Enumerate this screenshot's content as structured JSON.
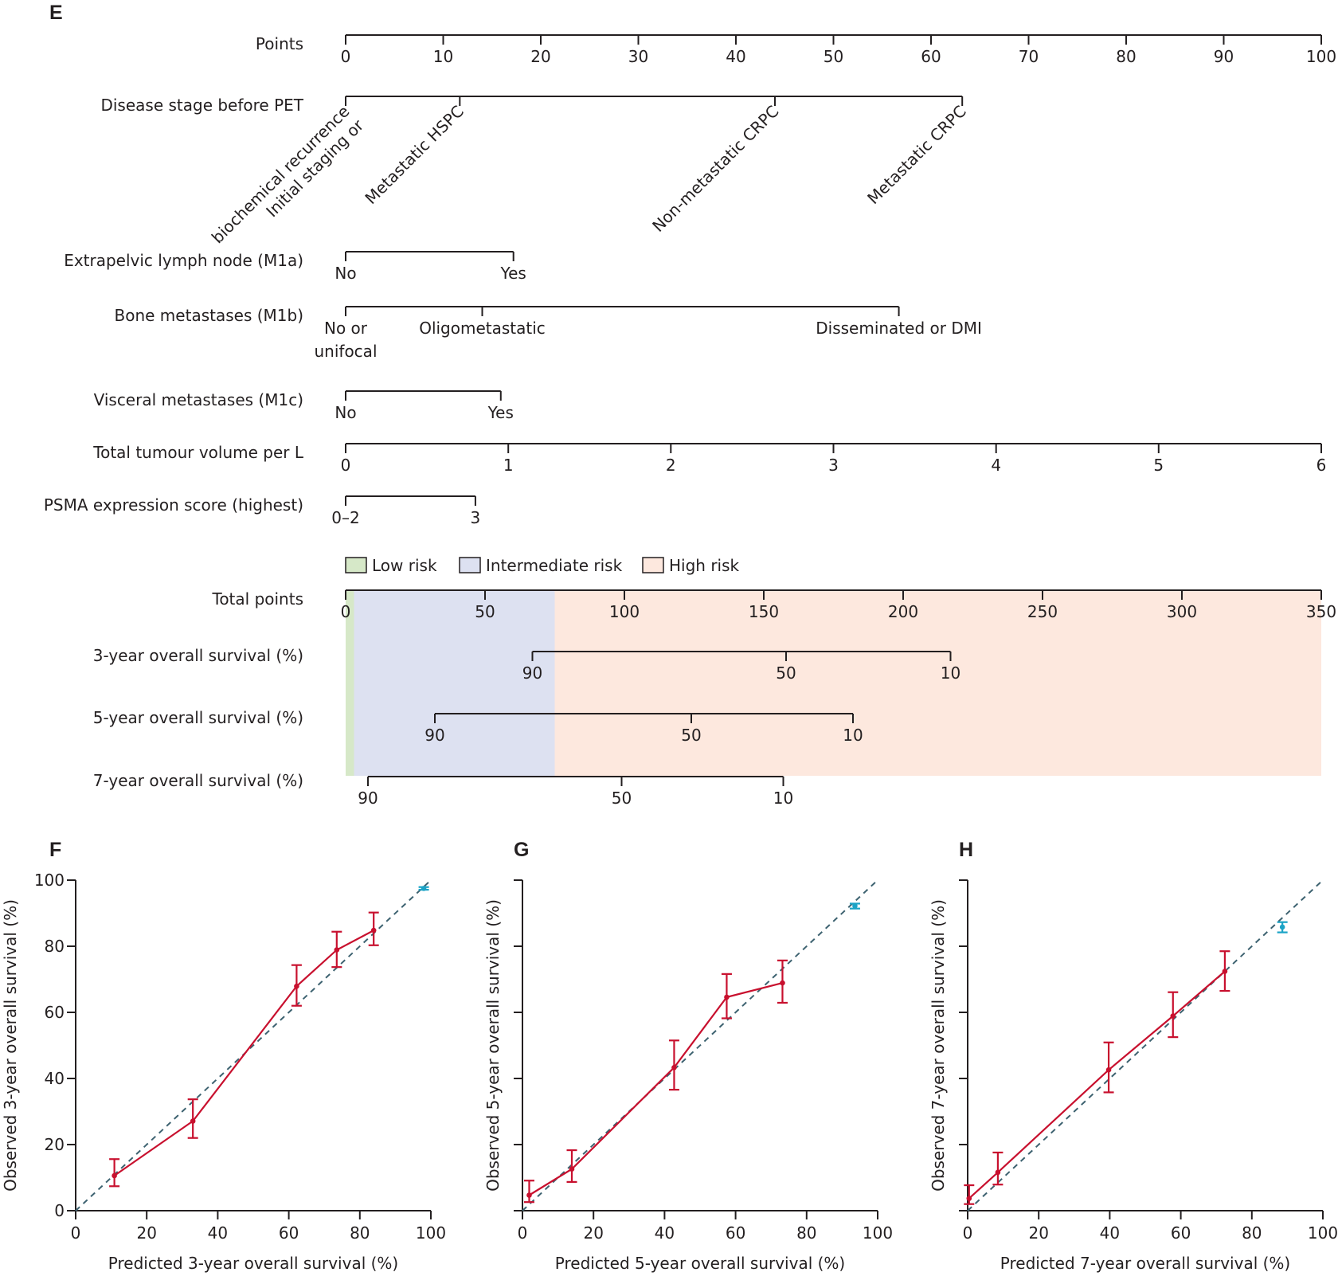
{
  "figure": {
    "panel_labels": [
      "E",
      "F",
      "G",
      "H"
    ]
  },
  "colors": {
    "low_risk": "#d6e8c8",
    "intermediate_risk": "#dde1f1",
    "high_risk": "#fde8de",
    "calibration_line": "#c8102e",
    "reference_point": "#1ba3c6",
    "diagonal": "#3d6270",
    "axis": "#231f20"
  },
  "chart_data": [
    {
      "type": "table",
      "panel": "E",
      "title": "Nomogram",
      "points_scale": {
        "label": "Points",
        "range": [
          0,
          100
        ],
        "ticks": [
          0,
          10,
          20,
          30,
          40,
          50,
          60,
          70,
          80,
          90,
          100
        ]
      },
      "predictors": [
        {
          "label": "Disease stage before PET",
          "rotated_labels": true,
          "levels": [
            {
              "label": "Initial staging or\nbiochemical recurrence",
              "lines": [
                "Initial staging or",
                "biochemical recurrence"
              ],
              "points": 0
            },
            {
              "label": "Metastatic HSPC",
              "lines": [
                "Metastatic HSPC"
              ],
              "points": 11.7
            },
            {
              "label": "Non-metastatic CRPC",
              "lines": [
                "Non-metastatic CRPC"
              ],
              "points": 44.0
            },
            {
              "label": "Metastatic CRPC",
              "lines": [
                "Metastatic CRPC"
              ],
              "points": 63.2
            }
          ]
        },
        {
          "label": "Extrapelvic lymph node (M1a)",
          "levels": [
            {
              "lines": [
                "No"
              ],
              "points": 0
            },
            {
              "lines": [
                "Yes"
              ],
              "points": 17.2
            }
          ]
        },
        {
          "label": "Bone metastases (M1b)",
          "levels": [
            {
              "lines": [
                "No or",
                "unifocal"
              ],
              "points": 0
            },
            {
              "lines": [
                "Oligometastatic"
              ],
              "points": 14.0
            },
            {
              "lines": [
                "Disseminated or DMI"
              ],
              "points": 56.7
            }
          ]
        },
        {
          "label": "Visceral metastases (M1c)",
          "levels": [
            {
              "lines": [
                "No"
              ],
              "points": 0
            },
            {
              "lines": [
                "Yes"
              ],
              "points": 15.9
            }
          ]
        },
        {
          "label": "Total tumour volume per L",
          "continuous": true,
          "levels": [
            {
              "lines": [
                "0"
              ],
              "points": 0
            },
            {
              "lines": [
                "1"
              ],
              "points": 16.67
            },
            {
              "lines": [
                "2"
              ],
              "points": 33.33
            },
            {
              "lines": [
                "3"
              ],
              "points": 50.0
            },
            {
              "lines": [
                "4"
              ],
              "points": 66.67
            },
            {
              "lines": [
                "5"
              ],
              "points": 83.33
            },
            {
              "lines": [
                "6"
              ],
              "points": 100.0
            }
          ]
        },
        {
          "label": "PSMA expression score (highest)",
          "levels": [
            {
              "lines": [
                "0–2"
              ],
              "points": 0
            },
            {
              "lines": [
                "3"
              ],
              "points": 13.3
            }
          ]
        }
      ],
      "legend": [
        {
          "label": "Low risk",
          "color_key": "low_risk"
        },
        {
          "label": "Intermediate risk",
          "color_key": "intermediate_risk"
        },
        {
          "label": "High risk",
          "color_key": "high_risk"
        }
      ],
      "risk_groups_total_points": {
        "low": [
          0,
          3
        ],
        "intermediate": [
          3,
          75
        ],
        "high": [
          75,
          350
        ]
      },
      "total_points_scale": {
        "label": "Total points",
        "range": [
          0,
          350
        ],
        "ticks": [
          0,
          50,
          100,
          150,
          200,
          250,
          300,
          350
        ]
      },
      "survival_scales": [
        {
          "label": "3-year overall survival (%)",
          "ticks": [
            {
              "value": "90",
              "total_points": 67
            },
            {
              "value": "50",
              "total_points": 158
            },
            {
              "value": "10",
              "total_points": 217
            }
          ]
        },
        {
          "label": "5-year overall survival (%)",
          "ticks": [
            {
              "value": "90",
              "total_points": 32
            },
            {
              "value": "50",
              "total_points": 124
            },
            {
              "value": "10",
              "total_points": 182
            }
          ]
        },
        {
          "label": "7-year overall survival (%)",
          "ticks": [
            {
              "value": "90",
              "total_points": 8
            },
            {
              "value": "50",
              "total_points": 99
            },
            {
              "value": "10",
              "total_points": 157
            }
          ]
        }
      ]
    },
    {
      "type": "line",
      "panel": "F",
      "xlabel": "Predicted 3-year overall survival (%)",
      "ylabel": "Observed 3-year overall survival (%)",
      "xlim": [
        0,
        100
      ],
      "ylim": [
        0,
        100
      ],
      "xticks": [
        0,
        20,
        40,
        60,
        80,
        100
      ],
      "yticks": [
        0,
        20,
        40,
        60,
        80,
        100
      ],
      "show_ytick_labels": true,
      "diagonal": true,
      "series": [
        {
          "name": "calibration",
          "color_key": "calibration_line",
          "points": [
            {
              "x": 10.9,
              "y": 10.6,
              "lo": 7.4,
              "hi": 15.6
            },
            {
              "x": 33.0,
              "y": 27.1,
              "lo": 22.0,
              "hi": 33.7
            },
            {
              "x": 62.2,
              "y": 67.9,
              "lo": 62.0,
              "hi": 74.3
            },
            {
              "x": 73.5,
              "y": 78.9,
              "lo": 73.7,
              "hi": 84.4
            },
            {
              "x": 83.9,
              "y": 84.8,
              "lo": 80.3,
              "hi": 90.2
            }
          ]
        },
        {
          "name": "reference",
          "color_key": "reference_point",
          "points": [
            {
              "x": 98.0,
              "y": 97.5,
              "lo": 97.1,
              "hi": 97.9
            }
          ]
        }
      ]
    },
    {
      "type": "line",
      "panel": "G",
      "xlabel": "Predicted 5-year overall survival (%)",
      "ylabel": "Observed 5-year overall survival (%)",
      "xlim": [
        0,
        100
      ],
      "ylim": [
        0,
        100
      ],
      "xticks": [
        0,
        20,
        40,
        60,
        80,
        100
      ],
      "yticks": [
        0,
        20,
        40,
        60,
        80,
        100
      ],
      "show_ytick_labels": false,
      "diagonal": true,
      "series": [
        {
          "name": "calibration",
          "color_key": "calibration_line",
          "points": [
            {
              "x": 1.9,
              "y": 4.7,
              "lo": 2.6,
              "hi": 9.1
            },
            {
              "x": 13.9,
              "y": 12.6,
              "lo": 8.7,
              "hi": 18.3
            },
            {
              "x": 42.7,
              "y": 43.3,
              "lo": 36.6,
              "hi": 51.5
            },
            {
              "x": 57.5,
              "y": 64.6,
              "lo": 58.2,
              "hi": 71.6
            },
            {
              "x": 73.2,
              "y": 68.9,
              "lo": 62.9,
              "hi": 75.7
            }
          ]
        },
        {
          "name": "reference",
          "color_key": "reference_point",
          "points": [
            {
              "x": 93.6,
              "y": 92.2,
              "lo": 91.4,
              "hi": 92.9
            }
          ]
        }
      ]
    },
    {
      "type": "line",
      "panel": "H",
      "xlabel": "Predicted 7-year overall survival (%)",
      "ylabel": "Observed 7-year overall survival (%)",
      "xlim": [
        0,
        100
      ],
      "ylim": [
        0,
        100
      ],
      "xticks": [
        0,
        20,
        40,
        60,
        80,
        100
      ],
      "yticks": [
        0,
        20,
        40,
        60,
        80,
        100
      ],
      "show_ytick_labels": false,
      "diagonal": true,
      "series": [
        {
          "name": "calibration",
          "color_key": "calibration_line",
          "points": [
            {
              "x": 0.4,
              "y": 3.7,
              "lo": 2.0,
              "hi": 7.7
            },
            {
              "x": 8.5,
              "y": 11.6,
              "lo": 7.9,
              "hi": 17.6
            },
            {
              "x": 39.7,
              "y": 42.6,
              "lo": 35.8,
              "hi": 50.9
            },
            {
              "x": 57.8,
              "y": 58.9,
              "lo": 52.5,
              "hi": 66.1
            },
            {
              "x": 72.4,
              "y": 72.4,
              "lo": 66.5,
              "hi": 78.5
            }
          ]
        },
        {
          "name": "reference",
          "color_key": "reference_point",
          "points": [
            {
              "x": 88.6,
              "y": 85.8,
              "lo": 84.2,
              "hi": 87.3
            }
          ]
        }
      ]
    }
  ]
}
